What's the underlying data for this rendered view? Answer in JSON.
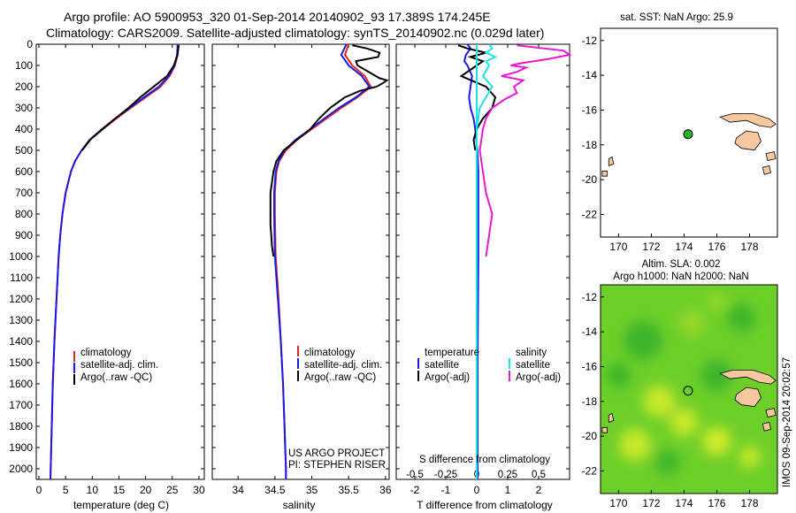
{
  "header": {
    "line1": "Argo profile: AO 5900953_320 01-Sep-2014 20140902_93 17.389S 174.245E",
    "line2": "Climatology: CARS2009. Satellite-adjusted climatology: synTS_20140902.nc (0.029d later)"
  },
  "colors": {
    "climatology": "#e8231e",
    "satellite": "#1a1ae6",
    "argo": "#000000",
    "cyan": "#19e6e6",
    "magenta": "#e619d8",
    "land": "#f7c8a0",
    "sla_bg": "#6ecf2a"
  },
  "chart_data": [
    {
      "id": "temperature",
      "type": "line",
      "xlabel": "temperature (deg C)",
      "xlim": [
        -0.5,
        31
      ],
      "ylim": [
        2050,
        0
      ],
      "xticks": [
        0,
        5,
        10,
        15,
        20,
        25,
        30
      ],
      "yticks": [
        0,
        100,
        200,
        300,
        400,
        500,
        600,
        700,
        800,
        900,
        1000,
        1100,
        1200,
        1300,
        1400,
        1500,
        1600,
        1700,
        1800,
        1900,
        2000
      ],
      "legend": [
        "climatology",
        "satellite-adj. clim.",
        "Argo(..raw -QC)"
      ],
      "series": [
        {
          "name": "climatology",
          "color": "#e8231e",
          "depth": [
            0,
            50,
            100,
            150,
            200,
            250,
            300,
            350,
            400,
            450,
            500,
            550,
            600,
            700,
            800,
            900,
            1000,
            1200,
            1400,
            1600,
            1800,
            2000,
            2050
          ],
          "values": [
            26.2,
            26.0,
            25.5,
            24.5,
            22.8,
            20.0,
            17.2,
            14.5,
            12.0,
            9.6,
            8.0,
            6.8,
            6.0,
            5.0,
            4.4,
            4.0,
            3.7,
            3.3,
            2.9,
            2.6,
            2.4,
            2.2,
            2.15
          ]
        },
        {
          "name": "satellite-adj. clim.",
          "color": "#1a1ae6",
          "depth": [
            0,
            50,
            100,
            150,
            200,
            250,
            300,
            350,
            400,
            450,
            500,
            550,
            600,
            700,
            800,
            900,
            1000,
            1200,
            1400,
            1600,
            1800,
            2000,
            2050
          ],
          "values": [
            26.0,
            25.9,
            25.4,
            24.3,
            22.5,
            19.7,
            17.0,
            14.3,
            11.8,
            9.5,
            8.0,
            6.8,
            6.0,
            5.0,
            4.4,
            4.0,
            3.7,
            3.3,
            2.9,
            2.6,
            2.4,
            2.2,
            2.15
          ]
        },
        {
          "name": "Argo(..raw -QC)",
          "color": "#000000",
          "depth": [
            5,
            50,
            100,
            150,
            200,
            250,
            300,
            350,
            400,
            450,
            500
          ],
          "values": [
            26.2,
            26.0,
            25.3,
            24.0,
            21.5,
            19.0,
            16.8,
            14.3,
            11.9,
            9.6,
            8.1
          ]
        }
      ]
    },
    {
      "id": "salinity",
      "type": "line",
      "xlabel": "salinity",
      "xlim": [
        33.65,
        36.05
      ],
      "ylim": [
        2050,
        0
      ],
      "xticks": [
        34,
        34.5,
        35,
        35.5,
        36
      ],
      "legend": [
        "climatology",
        "satellite-adj. clim.",
        "Argo(..raw -QC)"
      ],
      "annotations": [
        "US ARGO PROJECT",
        "PI: STEPHEN RISER"
      ],
      "series": [
        {
          "name": "climatology",
          "color": "#e8231e",
          "depth": [
            0,
            50,
            100,
            150,
            200,
            250,
            300,
            350,
            400,
            450,
            500,
            550,
            600,
            700,
            800,
            1000,
            1200,
            1400,
            1600,
            1800,
            2000,
            2050
          ],
          "values": [
            35.5,
            35.45,
            35.55,
            35.72,
            35.8,
            35.62,
            35.4,
            35.2,
            35.0,
            34.8,
            34.65,
            34.56,
            34.52,
            34.5,
            34.5,
            34.51,
            34.55,
            34.58,
            34.61,
            34.63,
            34.65,
            34.65
          ]
        },
        {
          "name": "satellite-adj. clim.",
          "color": "#1a1ae6",
          "depth": [
            0,
            50,
            100,
            150,
            200,
            250,
            300,
            350,
            400,
            450,
            500,
            550,
            600,
            700,
            800,
            1000,
            1200,
            1400,
            1600,
            1800,
            2000,
            2050
          ],
          "values": [
            35.47,
            35.4,
            35.5,
            35.68,
            35.78,
            35.6,
            35.37,
            35.17,
            34.98,
            34.78,
            34.63,
            34.55,
            34.51,
            34.49,
            34.49,
            34.5,
            34.54,
            34.58,
            34.61,
            34.63,
            34.65,
            34.65
          ]
        },
        {
          "name": "Argo(..raw -QC)",
          "color": "#000000",
          "depth": [
            5,
            20,
            40,
            60,
            80,
            100,
            120,
            140,
            160,
            170,
            180,
            200,
            220,
            250,
            300,
            350,
            400,
            450,
            500,
            550,
            600,
            650,
            700,
            750,
            800,
            850,
            900,
            950,
            1000
          ],
          "values": [
            35.55,
            35.75,
            35.92,
            35.9,
            35.6,
            35.62,
            35.72,
            35.82,
            35.92,
            36.02,
            35.98,
            35.88,
            35.65,
            35.45,
            35.25,
            35.1,
            34.98,
            34.8,
            34.62,
            34.52,
            34.48,
            34.46,
            34.44,
            34.44,
            34.44,
            34.44,
            34.45,
            34.46,
            34.48
          ]
        }
      ]
    },
    {
      "id": "difference",
      "type": "line",
      "xlabel": "T difference from climatology",
      "xlabel_top": "S difference from climatology",
      "xlim": [
        -2.6,
        3.0
      ],
      "ylim": [
        2050,
        0
      ],
      "xticks_T": [
        -2,
        -1,
        0,
        1,
        2
      ],
      "xticks_S": [
        "-0.5",
        "-0.25",
        "0",
        "0.25",
        "0.5"
      ],
      "legend_headers": [
        "temperature",
        "salinity"
      ],
      "legend": [
        "satellite",
        "Argo(-adj)",
        "satellite",
        "Argo(-adj)"
      ],
      "series": [
        {
          "name": "satellite",
          "group": "temperature",
          "color": "#1a1ae6",
          "depth": [
            0,
            20,
            50,
            80,
            100,
            150,
            200,
            250,
            300,
            350,
            400,
            500,
            600,
            800,
            1000,
            1500,
            2000,
            2050
          ],
          "values": [
            -0.3,
            -0.2,
            -0.35,
            -0.4,
            -0.3,
            -0.15,
            -0.2,
            -0.25,
            -0.2,
            -0.1,
            -0.05,
            0.02,
            0.05,
            0.05,
            0.05,
            0.03,
            0.03,
            0.03
          ]
        },
        {
          "name": "Argo(-adj)",
          "group": "temperature",
          "color": "#000000",
          "depth": [
            5,
            20,
            40,
            60,
            80,
            100,
            150,
            200,
            250,
            300,
            350,
            400,
            450,
            500
          ],
          "values": [
            -0.6,
            -0.3,
            0.3,
            -0.2,
            0.2,
            0.0,
            -0.5,
            0.3,
            0.6,
            0.5,
            0.2,
            0.0,
            -0.1,
            -0.05
          ]
        },
        {
          "name": "satellite",
          "group": "salinity",
          "color": "#19e6e6",
          "depth": [
            0,
            20,
            40,
            60,
            80,
            100,
            150,
            200,
            300,
            400,
            500,
            600,
            800,
            1000,
            1500,
            2000,
            2050
          ],
          "values": [
            0.4,
            0.5,
            0.3,
            0.6,
            0.3,
            0.4,
            0.2,
            0.5,
            0.1,
            0.0,
            0.0,
            0.0,
            0.0,
            0.0,
            0.0,
            0.0,
            0.0
          ]
        },
        {
          "name": "Argo(-adj)",
          "group": "salinity",
          "color": "#e619d8",
          "depth": [
            5,
            30,
            50,
            70,
            90,
            100,
            110,
            130,
            150,
            170,
            200,
            230,
            260,
            300,
            350,
            400,
            500,
            600,
            700,
            800,
            900,
            1000
          ],
          "values": [
            1.3,
            2.8,
            3.0,
            2.3,
            1.4,
            1.1,
            1.6,
            1.3,
            0.8,
            1.5,
            1.2,
            1.3,
            0.9,
            0.5,
            0.3,
            0.2,
            0.1,
            0.2,
            0.3,
            0.5,
            0.4,
            0.3
          ]
        }
      ]
    }
  ],
  "maps": [
    {
      "id": "sst-map",
      "title": "sat. SST: NaN Argo: 25.9",
      "xticks": [
        "170",
        "172",
        "174",
        "176",
        "178"
      ],
      "yticks": [
        "-12",
        "-14",
        "-16",
        "-18",
        "-20",
        "-22"
      ],
      "lon_range": [
        168.9,
        179.7
      ],
      "lat_range": [
        -23.3,
        -11.3
      ],
      "float_lon": 174.245,
      "float_lat": -17.389
    },
    {
      "id": "sla-map",
      "title1": "Altim. SLA: 0.002",
      "title2": "Argo h1000: NaN h2000: NaN",
      "xticks": [
        "170",
        "172",
        "174",
        "176",
        "178"
      ],
      "yticks": [
        "-12",
        "-14",
        "-16",
        "-18",
        "-20",
        "-22"
      ],
      "lon_range": [
        168.9,
        179.7
      ],
      "lat_range": [
        -23.3,
        -11.3
      ],
      "float_lon": 174.245,
      "float_lat": -17.389
    }
  ],
  "watermark": "IMOS 09-Sep-2014 20:02:57"
}
